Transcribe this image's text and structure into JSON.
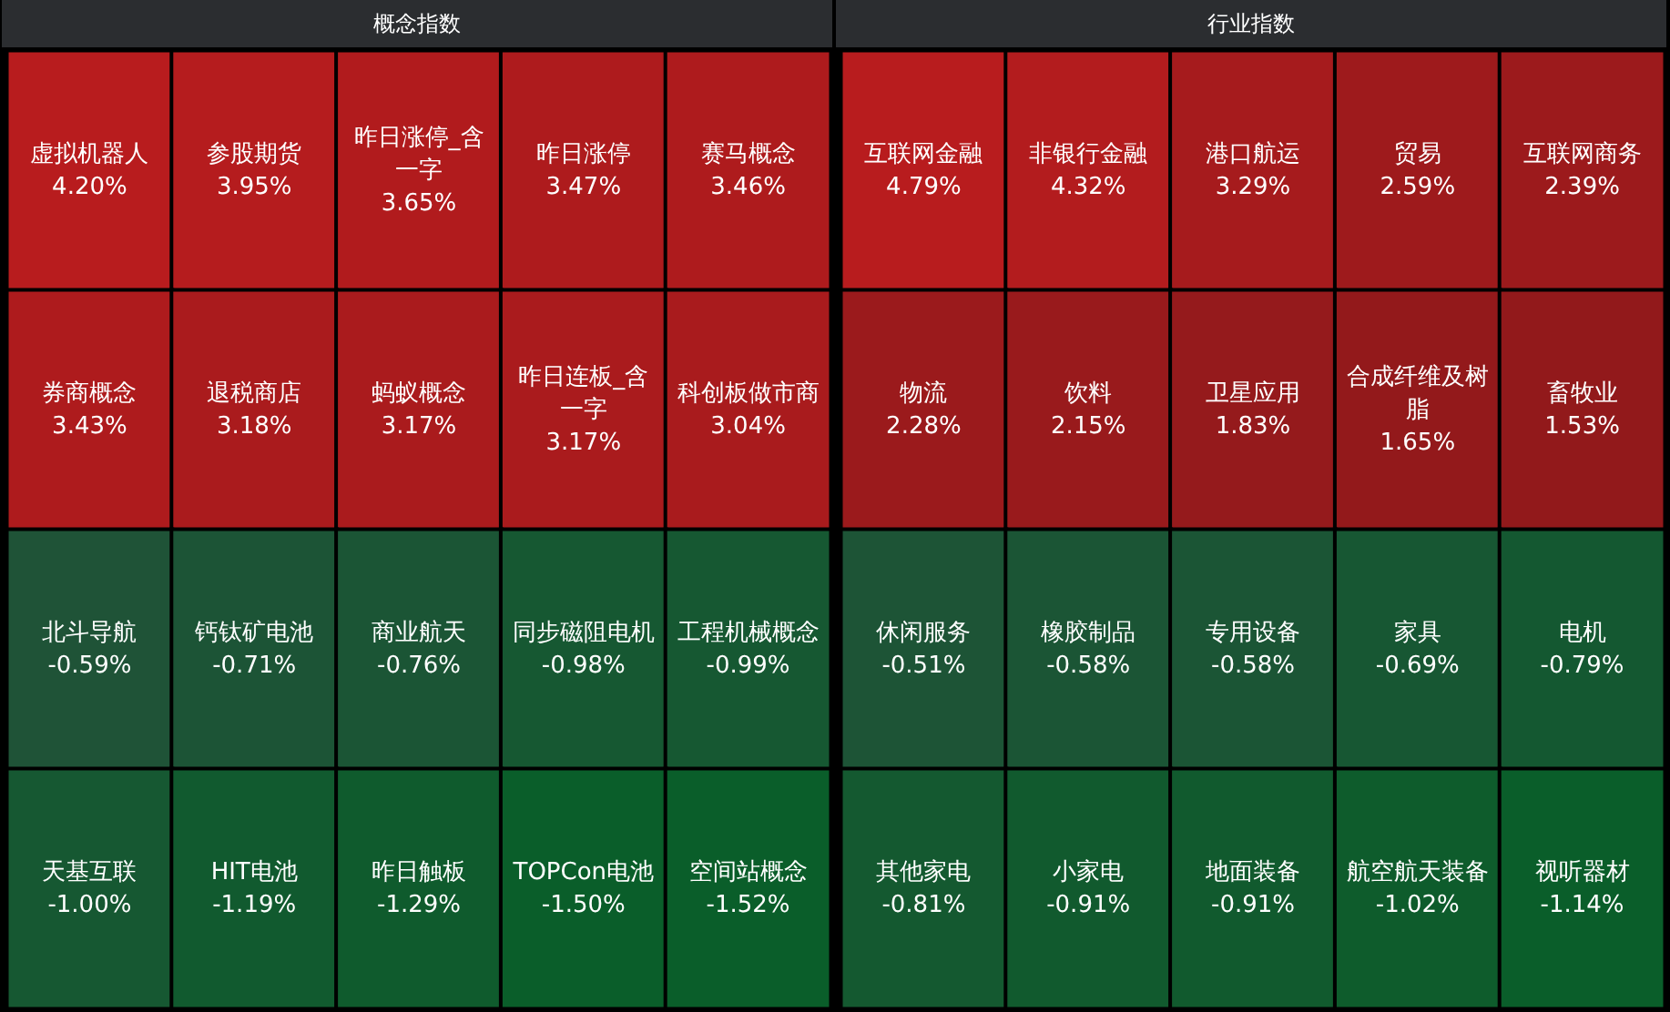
{
  "chart_data": [
    {
      "type": "other",
      "title": "概念指数",
      "categories": [
        "虚拟机器人",
        "参股期货",
        "昨日涨停_含一字",
        "昨日涨停",
        "赛马概念",
        "券商概念",
        "退税商店",
        "蚂蚁概念",
        "昨日连板_含一字",
        "科创板做市商",
        "北斗导航",
        "钙钛矿电池",
        "商业航天",
        "同步磁阻电机",
        "工程机械概念",
        "天基互联",
        "HIT电池",
        "昨日触板",
        "TOPCon电池",
        "空间站概念"
      ],
      "values": [
        4.2,
        3.95,
        3.65,
        3.47,
        3.46,
        3.43,
        3.18,
        3.17,
        3.17,
        3.04,
        -0.59,
        -0.71,
        -0.76,
        -0.98,
        -0.99,
        -1.0,
        -1.19,
        -1.29,
        -1.5,
        -1.52
      ],
      "value_labels": [
        "4.20%",
        "3.95%",
        "3.65%",
        "3.47%",
        "3.46%",
        "3.43%",
        "3.18%",
        "3.17%",
        "3.17%",
        "3.04%",
        "-0.59%",
        "-0.71%",
        "-0.76%",
        "-0.98%",
        "-0.99%",
        "-1.00%",
        "-1.19%",
        "-1.29%",
        "-1.50%",
        "-1.52%"
      ]
    },
    {
      "type": "other",
      "title": "行业指数",
      "categories": [
        "互联网金融",
        "非银行金融",
        "港口航运",
        "贸易",
        "互联网商务",
        "物流",
        "饮料",
        "卫星应用",
        "合成纤维及树脂",
        "畜牧业",
        "休闲服务",
        "橡胶制品",
        "专用设备",
        "家具",
        "电机",
        "其他家电",
        "小家电",
        "地面装备",
        "航空航天装备",
        "视听器材"
      ],
      "values": [
        4.79,
        4.32,
        3.29,
        2.59,
        2.39,
        2.28,
        2.15,
        1.83,
        1.65,
        1.53,
        -0.51,
        -0.58,
        -0.58,
        -0.69,
        -0.79,
        -0.81,
        -0.91,
        -0.91,
        -1.02,
        -1.14
      ],
      "value_labels": [
        "4.79%",
        "4.32%",
        "3.29%",
        "2.59%",
        "2.39%",
        "2.28%",
        "2.15%",
        "1.83%",
        "1.65%",
        "1.53%",
        "-0.51%",
        "-0.58%",
        "-0.58%",
        "-0.69%",
        "-0.79%",
        "-0.81%",
        "-0.91%",
        "-0.91%",
        "-1.02%",
        "-1.14%"
      ]
    }
  ]
}
